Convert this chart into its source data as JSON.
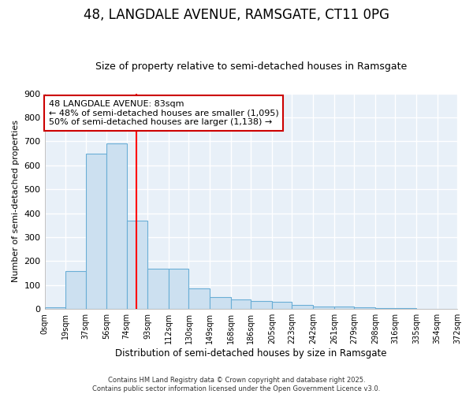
{
  "title": "48, LANGDALE AVENUE, RAMSGATE, CT11 0PG",
  "subtitle": "Size of property relative to semi-detached houses in Ramsgate",
  "xlabel": "Distribution of semi-detached houses by size in Ramsgate",
  "ylabel": "Number of semi-detached properties",
  "bar_color": "#cce0f0",
  "bar_edge_color": "#6aaed6",
  "bin_edges": [
    0,
    19,
    37,
    56,
    74,
    93,
    112,
    130,
    149,
    168,
    186,
    205,
    223,
    242,
    261,
    279,
    298,
    316,
    335,
    354,
    372
  ],
  "bar_heights": [
    8,
    160,
    650,
    690,
    370,
    170,
    170,
    85,
    50,
    40,
    35,
    30,
    16,
    12,
    10,
    8,
    5,
    3,
    2,
    1
  ],
  "x_tick_labels": [
    "0sqm",
    "19sqm",
    "37sqm",
    "56sqm",
    "74sqm",
    "93sqm",
    "112sqm",
    "130sqm",
    "149sqm",
    "168sqm",
    "186sqm",
    "205sqm",
    "223sqm",
    "242sqm",
    "261sqm",
    "279sqm",
    "298sqm",
    "316sqm",
    "335sqm",
    "354sqm",
    "372sqm"
  ],
  "ylim": [
    0,
    900
  ],
  "red_line_x": 83,
  "annotation_title": "48 LANGDALE AVENUE: 83sqm",
  "annotation_line2": "← 48% of semi-detached houses are smaller (1,095)",
  "annotation_line3": "50% of semi-detached houses are larger (1,138) →",
  "footnote": "Contains HM Land Registry data © Crown copyright and database right 2025.\nContains public sector information licensed under the Open Government Licence v3.0.",
  "plot_bg_color": "#e8f0f8",
  "fig_bg_color": "#ffffff",
  "annotation_box_color": "#ffffff",
  "annotation_border_color": "#cc0000",
  "grid_color": "#ffffff",
  "title_fontsize": 12,
  "subtitle_fontsize": 9
}
